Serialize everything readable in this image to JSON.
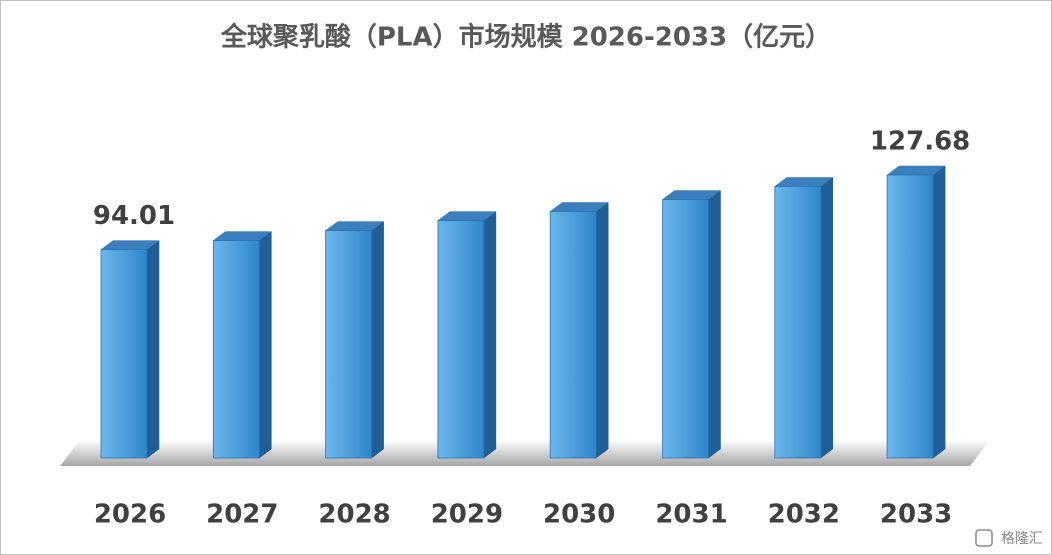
{
  "chart_data": {
    "type": "bar3d",
    "title": "全球聚乳酸（PLA）市场规模 2026-2033（亿元）",
    "categories": [
      "2026",
      "2027",
      "2028",
      "2029",
      "2030",
      "2031",
      "2032",
      "2033"
    ],
    "values": [
      94.01,
      98.1,
      102.6,
      107.1,
      111.2,
      116.6,
      122.5,
      127.68
    ],
    "value_labels": [
      "94.01",
      null,
      null,
      null,
      null,
      null,
      null,
      "127.68"
    ],
    "color": "#3f95d8"
  },
  "watermark": "格隆汇"
}
